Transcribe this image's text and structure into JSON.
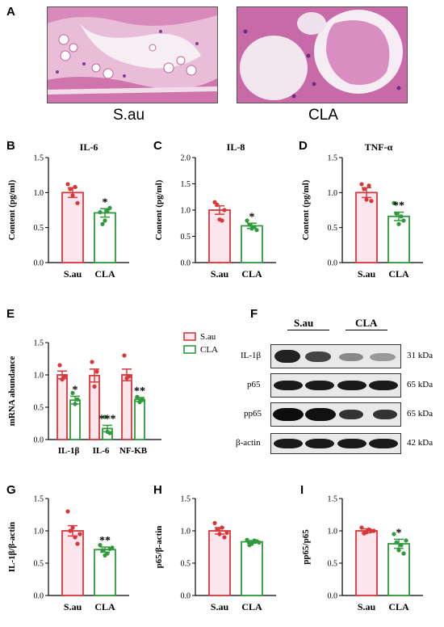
{
  "panel_letters": {
    "A": "A",
    "B": "B",
    "C": "C",
    "D": "D",
    "E": "E",
    "F": "F",
    "G": "G",
    "H": "H",
    "I": "I"
  },
  "histology": {
    "left_label": "S.au",
    "right_label": "CLA"
  },
  "colors": {
    "sau": "#d9383a",
    "cla": "#2f9a3b",
    "sau_fill": "#fbe6ee",
    "cla_fill": "#ffffff"
  },
  "chart_data": [
    {
      "id": "B",
      "type": "bar",
      "title": "IL-6",
      "ylabel": "Content (pg/ml)",
      "ylim": [
        0,
        1.5
      ],
      "yticks": [
        "0.0",
        "0.5",
        "1.0",
        "1.5"
      ],
      "categories": [
        "S.au",
        "CLA"
      ],
      "values": [
        1.0,
        0.71
      ],
      "errors": [
        0.07,
        0.06
      ],
      "points": [
        [
          1.12,
          0.96,
          0.85,
          1.05,
          1.08
        ],
        [
          0.72,
          0.6,
          0.78,
          0.55,
          0.74
        ]
      ],
      "significance": [
        "",
        "*"
      ]
    },
    {
      "id": "C",
      "type": "bar",
      "title": "IL-8",
      "ylabel": "Content (pg/ml)",
      "ylim": [
        0,
        2.0
      ],
      "yticks": [
        "0.0",
        "0.5",
        "1.0",
        "1.5",
        "2.0"
      ],
      "categories": [
        "S.au",
        "CLA"
      ],
      "values": [
        1.0,
        0.7
      ],
      "errors": [
        0.08,
        0.05
      ],
      "points": [
        [
          1.15,
          0.82,
          1.0,
          1.1,
          0.8
        ],
        [
          0.8,
          0.65,
          0.62,
          0.72,
          0.68
        ]
      ],
      "significance": [
        "",
        "*"
      ]
    },
    {
      "id": "D",
      "type": "bar",
      "title": "TNF-α",
      "ylabel": "Content (pg/ml)",
      "ylim": [
        0,
        1.5
      ],
      "yticks": [
        "0.0",
        "0.5",
        "1.0",
        "1.5"
      ],
      "categories": [
        "S.au",
        "CLA"
      ],
      "values": [
        1.0,
        0.66
      ],
      "errors": [
        0.07,
        0.06
      ],
      "points": [
        [
          1.12,
          0.9,
          0.88,
          1.05,
          1.1
        ],
        [
          0.85,
          0.55,
          0.6,
          0.7,
          0.66
        ]
      ],
      "significance": [
        "",
        "**"
      ]
    },
    {
      "id": "E",
      "type": "bar",
      "ylabel": "mRNA abundance",
      "ylim": [
        0,
        1.5
      ],
      "yticks": [
        "0.0",
        "0.5",
        "1.0",
        "1.5"
      ],
      "categories": [
        "IL-1β",
        "IL-6",
        "NF-KB"
      ],
      "series": [
        {
          "name": "S.au",
          "values": [
            1.0,
            0.99,
            1.0
          ],
          "errors": [
            0.06,
            0.1,
            0.09
          ],
          "points": [
            [
              1.15,
              0.93,
              0.98
            ],
            [
              1.2,
              0.82,
              1.05
            ],
            [
              1.3,
              0.95,
              0.98
            ]
          ]
        },
        {
          "name": "CLA",
          "values": [
            0.61,
            0.17,
            0.62
          ],
          "errors": [
            0.06,
            0.05,
            0.03
          ],
          "points": [
            [
              0.72,
              0.55,
              0.62
            ],
            [
              0.35,
              0.12,
              0.1
            ],
            [
              0.66,
              0.58,
              0.62
            ]
          ]
        }
      ],
      "significance": [
        "*",
        "***",
        "**"
      ],
      "legend_placement": "right"
    },
    {
      "id": "G",
      "type": "bar",
      "ylabel": "IL-1β/β-actin",
      "ylim": [
        0,
        1.5
      ],
      "yticks": [
        "0.0",
        "0.5",
        "1.0",
        "1.5"
      ],
      "categories": [
        "S.au",
        "CLA"
      ],
      "values": [
        1.0,
        0.71
      ],
      "errors": [
        0.08,
        0.04
      ],
      "points": [
        [
          1.3,
          1.05,
          0.8,
          1.0,
          0.9,
          0.95
        ],
        [
          0.78,
          0.62,
          0.72,
          0.7,
          0.65,
          0.74
        ]
      ],
      "significance": [
        "",
        "**"
      ]
    },
    {
      "id": "H",
      "type": "bar",
      "ylabel": "p65/β-actin",
      "ylim": [
        0,
        1.5
      ],
      "yticks": [
        "0.0",
        "0.5",
        "1.0",
        "1.5"
      ],
      "categories": [
        "S.au",
        "CLA"
      ],
      "values": [
        1.0,
        0.83
      ],
      "errors": [
        0.05,
        0.02
      ],
      "points": [
        [
          1.12,
          0.95,
          0.9,
          1.02,
          1.05,
          0.97
        ],
        [
          0.86,
          0.8,
          0.84,
          0.78,
          0.85,
          0.82
        ]
      ],
      "significance": [
        "",
        ""
      ]
    },
    {
      "id": "I",
      "type": "bar",
      "ylabel": "pp65/p65",
      "ylim": [
        0,
        1.5
      ],
      "yticks": [
        "0.0",
        "0.5",
        "1.0",
        "1.5"
      ],
      "categories": [
        "S.au",
        "CLA"
      ],
      "values": [
        1.0,
        0.8
      ],
      "errors": [
        0.03,
        0.07
      ],
      "points": [
        [
          1.05,
          0.98,
          1.0,
          0.96,
          1.02,
          1.0
        ],
        [
          0.95,
          0.7,
          0.65,
          0.82,
          0.78,
          0.85
        ]
      ],
      "significance": [
        "",
        "*"
      ]
    }
  ],
  "western_blot": {
    "group_labels": [
      "S.au",
      "CLA"
    ],
    "rows": [
      {
        "label": "IL-1β",
        "kda": "31 kDa"
      },
      {
        "label": "p65",
        "kda": "65 kDa"
      },
      {
        "label": "pp65",
        "kda": "65 kDa"
      },
      {
        "label": "β-actin",
        "kda": "42 kDa"
      }
    ]
  }
}
